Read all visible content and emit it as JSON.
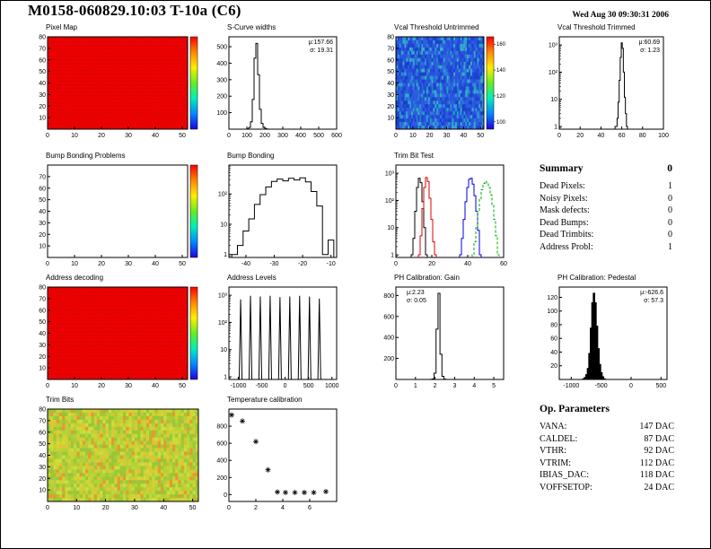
{
  "header": {
    "title": "M0158-060829.10:03 T-10a (C6)",
    "timestamp": "Wed Aug 30 09:30:31 2006"
  },
  "summary": {
    "title": "Summary",
    "grade": "0",
    "rows": [
      {
        "label": "Dead Pixels:",
        "value": "1"
      },
      {
        "label": "Noisy Pixels:",
        "value": "0"
      },
      {
        "label": "Mask defects:",
        "value": "0"
      },
      {
        "label": "Dead Bumps:",
        "value": "0"
      },
      {
        "label": "Dead Trimbits:",
        "value": "0"
      },
      {
        "label": "Address Probl:",
        "value": "1"
      }
    ]
  },
  "op_parameters": {
    "title": "Op. Parameters",
    "rows": [
      {
        "label": "VANA:",
        "value": "147 DAC"
      },
      {
        "label": "CALDEL:",
        "value": "87 DAC"
      },
      {
        "label": "VTHR:",
        "value": "92 DAC"
      },
      {
        "label": "VTRIM:",
        "value": "112 DAC"
      },
      {
        "label": "IBIAS_DAC:",
        "value": "118 DAC"
      },
      {
        "label": "VOFFSETOP:",
        "value": "24 DAC"
      }
    ]
  },
  "chart_data": [
    {
      "id": "pixel_map",
      "type": "heatmap",
      "title": "Pixel Map",
      "xlim": [
        0,
        52
      ],
      "ylim": [
        0,
        80
      ],
      "xticks": [
        0,
        10,
        20,
        30,
        40,
        50
      ],
      "yticks": [
        10,
        20,
        30,
        40,
        50,
        60,
        70,
        80
      ],
      "fill_mode": "solid",
      "fill": "#ee0000",
      "texture_color": "#a01010",
      "colorbar": true,
      "colorbar_colors": [
        "#ff0000",
        "#ff8800",
        "#ffee00",
        "#66ee22",
        "#00eebb",
        "#0088ff",
        "#2200dd"
      ]
    },
    {
      "id": "scurve_widths",
      "type": "histogram",
      "title": "S-Curve widths",
      "xlim": [
        0,
        600
      ],
      "xticks": [
        0,
        100,
        200,
        300,
        400,
        500,
        600
      ],
      "ylim": [
        0,
        560
      ],
      "yticks": [
        100,
        200,
        300,
        400,
        500
      ],
      "x": [
        95,
        105,
        115,
        125,
        135,
        145,
        155,
        165,
        175,
        185,
        195,
        205,
        215,
        225
      ],
      "y": [
        0,
        2,
        10,
        45,
        180,
        430,
        520,
        330,
        120,
        35,
        10,
        4,
        1,
        0
      ],
      "color": "#000000",
      "stats": [
        "μ:157.66",
        "σ: 19.31"
      ],
      "stats_pos": "right"
    },
    {
      "id": "vcal_untrimmed",
      "type": "heatmap",
      "title": "Vcal Threshold Untrimmed",
      "xlim": [
        0,
        52
      ],
      "ylim": [
        0,
        80
      ],
      "xticks": [
        0,
        10,
        20,
        30,
        40,
        50
      ],
      "yticks": [
        10,
        20,
        30,
        40,
        50,
        60,
        70,
        80
      ],
      "fill_mode": "noise",
      "seed": 13,
      "palette": [
        "#2247d8",
        "#1d3fd0",
        "#2a52e0",
        "#2f5ce4",
        "#2363d8",
        "#2a7fd0",
        "#35b0c8",
        "#2950dc",
        "#1a44c8",
        "#3060e0",
        "#28a0d0"
      ],
      "colorbar": true,
      "colorbar_colors": [
        "#ff0000",
        "#ff8800",
        "#ffee00",
        "#66ee22",
        "#00eebb",
        "#0088ff",
        "#2200dd"
      ],
      "colorbar_labels": [
        "160",
        "140",
        "120",
        "100"
      ]
    },
    {
      "id": "vcal_trimmed",
      "type": "histogram",
      "title": "Vcal Threshold Trimmed",
      "ylog": true,
      "xlim": [
        0,
        100
      ],
      "xticks": [
        0,
        20,
        40,
        60,
        80,
        100
      ],
      "ylim": [
        0.8,
        2000
      ],
      "yticks": [
        1,
        10,
        100,
        1000
      ],
      "x": [
        53,
        54,
        55,
        56,
        57,
        58,
        59,
        60,
        61,
        62,
        63,
        64,
        65,
        66,
        67
      ],
      "y": [
        0,
        1,
        1,
        2,
        8,
        50,
        350,
        1200,
        750,
        100,
        12,
        3,
        1,
        0,
        0
      ],
      "color": "#000000",
      "stats": [
        "μ:60.69",
        "σ: 1.23"
      ],
      "stats_pos": "right"
    },
    {
      "id": "bump_problems",
      "type": "heatmap",
      "title": "Bump Bonding Problems",
      "xlim": [
        0,
        52
      ],
      "ylim": [
        0,
        80
      ],
      "xticks": [
        0,
        10,
        20,
        30,
        40,
        50
      ],
      "yticks": [
        10,
        20,
        30,
        40,
        50,
        60,
        70
      ],
      "fill_mode": "empty",
      "colorbar": true,
      "colorbar_colors": [
        "#ff0000",
        "#ff8800",
        "#ffee00",
        "#66ee22",
        "#00eebb",
        "#0088ff",
        "#2200dd"
      ]
    },
    {
      "id": "bump_bonding",
      "type": "histogram",
      "title": "Bump Bonding",
      "ylog": true,
      "xlim": [
        -46,
        -8
      ],
      "xticks": [
        -40,
        -30,
        -20,
        -10
      ],
      "ylim": [
        0.8,
        900
      ],
      "yticks": [
        1,
        10,
        100
      ],
      "x": [
        -44,
        -42,
        -40,
        -38,
        -36,
        -34,
        -32,
        -30,
        -28,
        -26,
        -24,
        -22,
        -20,
        -18,
        -16,
        -14,
        -12,
        -10
      ],
      "y": [
        1,
        2,
        6,
        15,
        45,
        95,
        170,
        260,
        310,
        270,
        330,
        290,
        340,
        250,
        120,
        40,
        1,
        3
      ],
      "color": "#000000"
    },
    {
      "id": "trim_bit_test",
      "type": "multihist",
      "title": "Trim Bit Test",
      "ylog": true,
      "xlim": [
        0,
        60
      ],
      "xticks": [
        0,
        20,
        40,
        60
      ],
      "ylim": [
        0.8,
        2000
      ],
      "yticks": [
        1,
        10,
        100,
        1000
      ],
      "series": [
        {
          "name": "black",
          "color": "#000000",
          "x": [
            9,
            10,
            11,
            12,
            13,
            14,
            15,
            16,
            17
          ],
          "y": [
            1,
            4,
            40,
            300,
            650,
            450,
            90,
            10,
            1
          ]
        },
        {
          "name": "red",
          "color": "#dd0000",
          "x": [
            13,
            14,
            15,
            16,
            17,
            18,
            19,
            20,
            21,
            22
          ],
          "y": [
            1,
            5,
            50,
            300,
            700,
            500,
            120,
            20,
            3,
            1
          ]
        },
        {
          "name": "blue",
          "color": "#0000dd",
          "x": [
            36,
            37,
            38,
            39,
            40,
            41,
            42,
            43,
            44,
            45,
            46,
            47
          ],
          "y": [
            1,
            4,
            20,
            90,
            300,
            600,
            650,
            400,
            150,
            40,
            8,
            1
          ]
        },
        {
          "name": "green",
          "color": "#00aa00",
          "dash": "3 2",
          "x": [
            43,
            44,
            45,
            46,
            47,
            48,
            49,
            50,
            51,
            52,
            53,
            54,
            55,
            56,
            57
          ],
          "y": [
            1,
            3,
            10,
            40,
            110,
            250,
            420,
            500,
            430,
            300,
            160,
            70,
            20,
            5,
            1
          ]
        }
      ]
    },
    {
      "id": "address_decoding",
      "type": "heatmap",
      "title": "Address decoding",
      "xlim": [
        0,
        52
      ],
      "ylim": [
        0,
        80
      ],
      "xticks": [
        0,
        10,
        20,
        30,
        40,
        50
      ],
      "yticks": [
        10,
        20,
        30,
        40,
        50,
        60,
        70,
        80
      ],
      "fill_mode": "solid",
      "fill": "#ee0000",
      "texture_color": "#a01010",
      "colorbar": true,
      "colorbar_colors": [
        "#ff0000",
        "#ff8800",
        "#ffee00",
        "#66ee22",
        "#00eebb",
        "#0088ff",
        "#2200dd"
      ]
    },
    {
      "id": "address_levels",
      "type": "spikes",
      "title": "Address Levels",
      "ylog": true,
      "xlim": [
        -1200,
        1100
      ],
      "xticks": [
        -1000,
        -500,
        0,
        500,
        1000
      ],
      "ylim": [
        0.8,
        2000
      ],
      "yticks": [
        1,
        10,
        100,
        1000
      ],
      "binw": 60,
      "x": [
        -950,
        -740,
        -530,
        -320,
        -110,
        100,
        310,
        520,
        730
      ],
      "y": [
        700,
        950,
        900,
        950,
        850,
        900,
        950,
        900,
        750
      ],
      "color": "#000000"
    },
    {
      "id": "ph_gain",
      "type": "histogram",
      "title": "PH Calibration: Gain",
      "xlim": [
        0,
        5.5
      ],
      "xticks": [
        0,
        1,
        2,
        3,
        4,
        5
      ],
      "ylim": [
        0,
        880
      ],
      "yticks": [
        200,
        400,
        600,
        800
      ],
      "x": [
        1.7,
        1.8,
        1.9,
        2.0,
        2.1,
        2.2,
        2.3,
        2.4,
        2.5,
        2.6
      ],
      "y": [
        0,
        1,
        5,
        60,
        480,
        820,
        240,
        30,
        3,
        0
      ],
      "color": "#000000",
      "stats": [
        "μ:2.23",
        "σ: 0.05"
      ],
      "stats_pos": "left"
    },
    {
      "id": "ph_pedestal",
      "type": "histogram",
      "title": "PH Calibration: Pedestal",
      "filled": true,
      "xlim": [
        -1200,
        600
      ],
      "xticks": [
        -1000,
        -500,
        0,
        500
      ],
      "ylim": [
        0,
        135
      ],
      "yticks": [
        20,
        40,
        60,
        80,
        100,
        120
      ],
      "x": [
        -820,
        -795,
        -770,
        -745,
        -720,
        -695,
        -670,
        -645,
        -620,
        -595,
        -570,
        -545,
        -520,
        -495,
        -470,
        -445,
        -420
      ],
      "y": [
        0,
        1,
        3,
        7,
        16,
        38,
        75,
        112,
        126,
        112,
        78,
        45,
        22,
        10,
        4,
        1,
        0
      ],
      "color": "#000000",
      "stats": [
        "μ:-626.6",
        "σ: 57.3"
      ],
      "stats_pos": "right"
    },
    {
      "id": "trim_bits",
      "type": "heatmap",
      "title": "Trim Bits",
      "xlim": [
        0,
        52
      ],
      "ylim": [
        0,
        80
      ],
      "xticks": [
        0,
        10,
        20,
        30,
        40,
        50
      ],
      "yticks": [
        10,
        20,
        30,
        40,
        50,
        60,
        70,
        80
      ],
      "fill_mode": "noise",
      "seed": 99,
      "palette": [
        "#a8cc3a",
        "#b4d434",
        "#c0d838",
        "#9cc438",
        "#ccd836",
        "#d8cc30",
        "#b0d040",
        "#a0c830",
        "#e0c432",
        "#98c83c",
        "#c8e040",
        "#e89830"
      ],
      "colorbar": false
    },
    {
      "id": "temp_cal",
      "type": "scatter",
      "title": "Temperature calibration",
      "xlim": [
        0,
        8
      ],
      "xticks": [
        0,
        2,
        4,
        6
      ],
      "ylim": [
        -80,
        1000
      ],
      "yticks": [
        0,
        200,
        400,
        600,
        800
      ],
      "points": [
        [
          0.2,
          930
        ],
        [
          1.0,
          860
        ],
        [
          2.0,
          620
        ],
        [
          2.9,
          290
        ],
        [
          3.6,
          30
        ],
        [
          4.2,
          25
        ],
        [
          4.9,
          25
        ],
        [
          5.6,
          25
        ],
        [
          6.3,
          25
        ],
        [
          7.2,
          35
        ]
      ]
    }
  ]
}
